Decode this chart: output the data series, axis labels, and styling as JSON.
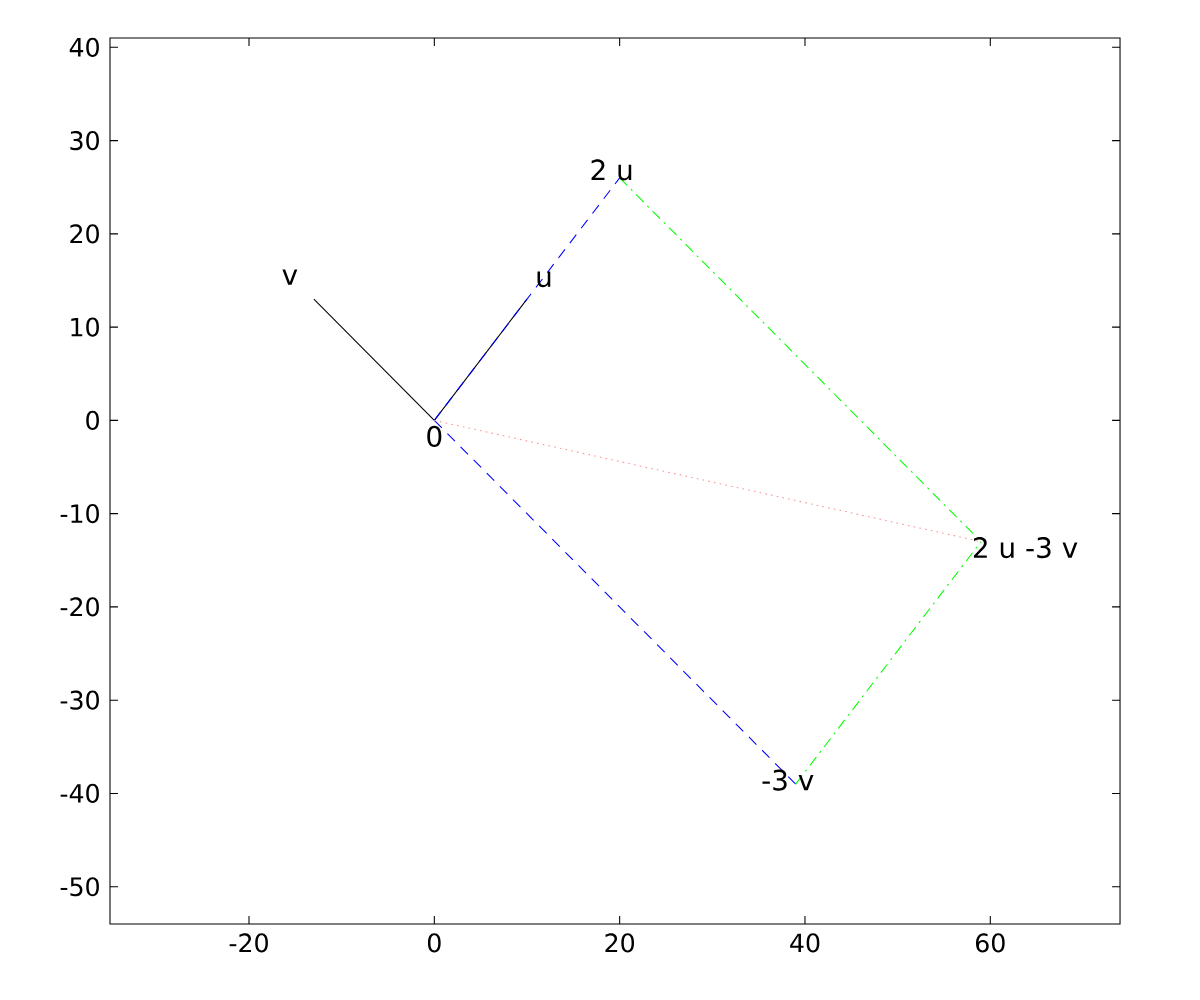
{
  "chart_data": {
    "type": "line",
    "xlim": [
      -35,
      74
    ],
    "ylim": [
      -54,
      41
    ],
    "xticks": [
      -20,
      0,
      20,
      40,
      60
    ],
    "yticks": [
      -50,
      -40,
      -30,
      -20,
      -10,
      0,
      10,
      20,
      30,
      40
    ],
    "grid": false,
    "series": [
      {
        "color": "#000000",
        "line_style": "solid",
        "x": [
          0,
          10
        ],
        "values": [
          0,
          13
        ]
      },
      {
        "color": "#000000",
        "line_style": "solid",
        "x": [
          0,
          -13
        ],
        "values": [
          0,
          13
        ]
      },
      {
        "color": "#0000ff",
        "line_style": "dashed",
        "x": [
          0,
          20
        ],
        "values": [
          0,
          26
        ]
      },
      {
        "color": "#0000ff",
        "line_style": "dashed",
        "x": [
          0,
          39
        ],
        "values": [
          0,
          -39
        ]
      },
      {
        "color": "#00ff00",
        "line_style": "dashdot",
        "x": [
          20,
          59
        ],
        "values": [
          26,
          -13
        ]
      },
      {
        "color": "#00ff00",
        "line_style": "dashdot",
        "x": [
          39,
          59
        ],
        "values": [
          -39,
          -13
        ]
      },
      {
        "color": "#ff9090",
        "line_style": "dotted",
        "x": [
          0,
          59
        ],
        "values": [
          0,
          -13
        ]
      }
    ],
    "annotations": [
      {
        "text": "v",
        "x": -13,
        "y": 13
      },
      {
        "text": "u",
        "x": 10,
        "y": 13
      },
      {
        "text": "0",
        "x": 0,
        "y": 0
      },
      {
        "text": "2 u",
        "x": 20,
        "y": 26
      },
      {
        "text": "-3 v",
        "x": 39,
        "y": -39
      },
      {
        "text": "2 u -3 v",
        "x": 59,
        "y": -13
      }
    ]
  }
}
